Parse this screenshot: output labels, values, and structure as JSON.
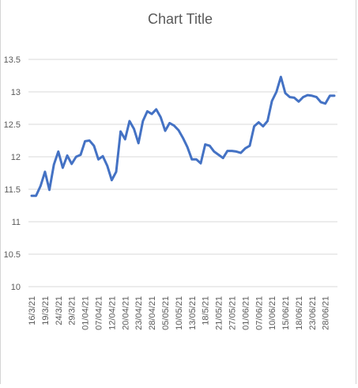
{
  "chart_data": {
    "type": "line",
    "title": "Chart Title",
    "xlabel": "",
    "ylabel": "",
    "ylim": [
      10,
      13.5
    ],
    "y_ticks": [
      10,
      10.5,
      11,
      11.5,
      12,
      12.5,
      13,
      13.5
    ],
    "y_tick_labels": [
      "10",
      "10.5",
      "11",
      "11.5",
      "12",
      "12.5",
      "13",
      "13.5"
    ],
    "grid": true,
    "legend": "none",
    "x_tick_labels": [
      "16/3/21",
      "19/3/21",
      "24/3/21",
      "29/3/21",
      "01/04/21",
      "07/04/21",
      "12/04/21",
      "20/04/21",
      "23/04/21",
      "28/04/21",
      "05/05/21",
      "10/05/21",
      "13/05/21",
      "18/5/21",
      "21/05/21",
      "27/05/21",
      "01/06/21",
      "07/06/21",
      "10/06/21",
      "15/06/21",
      "18/06/21",
      "23/06/21",
      "28/06/21"
    ],
    "x_tick_positions": [
      0,
      3,
      6,
      9,
      12,
      15,
      18,
      21,
      24,
      27,
      30,
      33,
      36,
      39,
      42,
      45,
      48,
      51,
      54,
      57,
      60,
      63,
      66
    ],
    "series": [
      {
        "color": "#4472c4",
        "values": [
          11.4,
          11.4,
          11.55,
          11.77,
          11.49,
          11.88,
          12.08,
          11.83,
          12.02,
          11.89,
          12.0,
          12.03,
          12.24,
          12.25,
          12.17,
          11.96,
          12.01,
          11.86,
          11.64,
          11.77,
          12.39,
          12.27,
          12.55,
          12.43,
          12.21,
          12.55,
          12.7,
          12.66,
          12.73,
          12.61,
          12.4,
          12.52,
          12.48,
          12.41,
          12.29,
          12.15,
          11.96,
          11.96,
          11.9,
          12.19,
          12.17,
          12.08,
          12.03,
          11.98,
          12.09,
          12.09,
          12.08,
          12.06,
          12.13,
          12.17,
          12.47,
          12.53,
          12.47,
          12.55,
          12.86,
          13.0,
          13.23,
          12.98,
          12.92,
          12.91,
          12.85,
          12.92,
          12.95,
          12.94,
          12.92,
          12.84,
          12.82,
          12.94,
          12.94
        ]
      }
    ]
  }
}
